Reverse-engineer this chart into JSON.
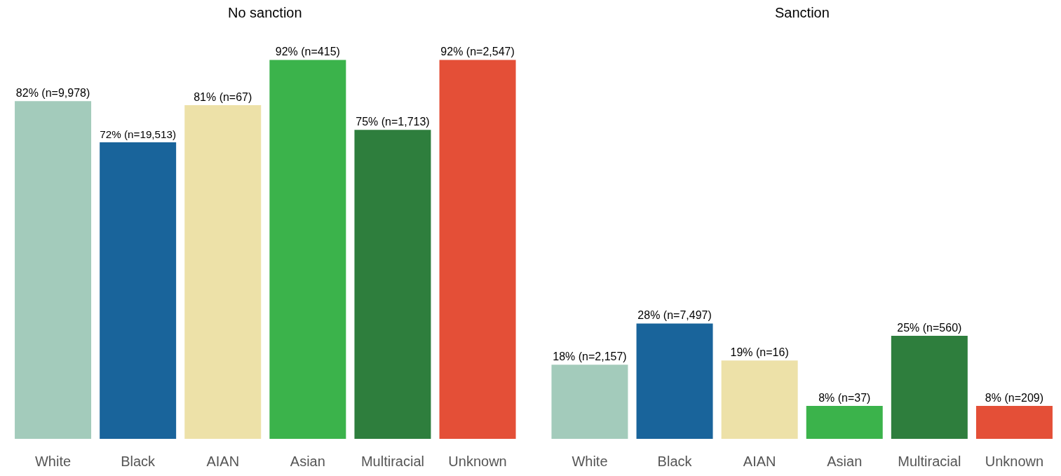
{
  "chart_data": [
    {
      "type": "bar",
      "title": "No sanction",
      "categories": [
        "White",
        "Black",
        "AIAN",
        "Asian",
        "Multiracial",
        "Unknown"
      ],
      "values": [
        82,
        72,
        81,
        92,
        75,
        92
      ],
      "colors": [
        "#a3cbbb",
        "#19649b",
        "#ede1a8",
        "#3bb34b",
        "#2e7e3d",
        "#e44f37"
      ],
      "value_labels": [
        "82% (n=9,978)",
        "72% (n=19,513)",
        "81% (n=67)",
        "92% (n=415)",
        "75% (n=1,713)",
        "92% (n=2,547)"
      ],
      "tick_labels": "x"
    },
    {
      "type": "bar",
      "title": "Sanction",
      "categories": [
        "White",
        "Black",
        "AIAN",
        "Asian",
        "Multiracial",
        "Unknown"
      ],
      "values": [
        18,
        28,
        19,
        8,
        25,
        8
      ],
      "colors": [
        "#a3cbbb",
        "#19649b",
        "#ede1a8",
        "#3bb34b",
        "#2e7e3d",
        "#e44f37"
      ],
      "value_labels": [
        "18% (n=2,157)",
        "28% (n=7,497)",
        "19% (n=16)",
        "8% (n=37)",
        "25% (n=560)",
        "8% (n=209)"
      ],
      "tick_labels": "x"
    }
  ]
}
